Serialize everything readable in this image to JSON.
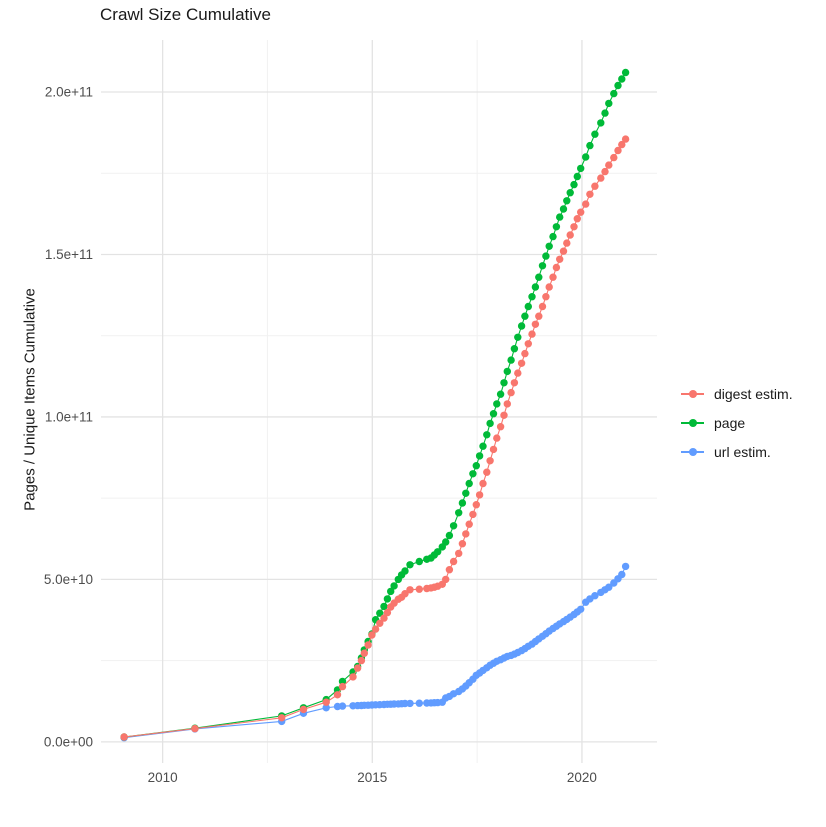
{
  "chart_data": {
    "type": "line",
    "title": "Crawl Size Cumulative",
    "xlabel": "",
    "ylabel": "Pages / Unique Items Cumulative",
    "legend_position": "right-center",
    "grid": true,
    "background": "#ffffff",
    "colors": {
      "grid_major": "#e3e3e3",
      "grid_minor": "#f1f1f1",
      "axis_tick_text": "#4d4d4d",
      "title_text": "#1a1a1a",
      "legend_text": "#1a1a1a"
    },
    "x_range": [
      2008.53,
      2021.79
    ],
    "y_range_billions": [
      -6.5,
      216
    ],
    "x_major_ticks": [
      2010,
      2015,
      2020
    ],
    "x_major_tick_labels": [
      "2010",
      "2015",
      "2020"
    ],
    "x_minor_ticks": [
      2012.5,
      2017.5
    ],
    "y_major_ticks_billions": [
      0,
      50,
      100,
      150,
      200
    ],
    "y_major_tick_labels": [
      "0.0e+00",
      "5.0e+10",
      "1.0e+11",
      "1.5e+11",
      "2.0e+11"
    ],
    "y_minor_ticks_billions": [
      25,
      75,
      125,
      175
    ],
    "units_note": "series values in billions (1e9) of pages / unique items, cumulative per crawl",
    "x": [
      2009.08,
      2010.77,
      2012.84,
      2013.36,
      2013.9,
      2014.17,
      2014.29,
      2014.54,
      2014.65,
      2014.74,
      2014.81,
      2014.9,
      2014.99,
      2015.08,
      2015.18,
      2015.28,
      2015.36,
      2015.44,
      2015.52,
      2015.62,
      2015.7,
      2015.78,
      2015.9,
      2016.12,
      2016.3,
      2016.4,
      2016.48,
      2016.56,
      2016.67,
      2016.75,
      2016.84,
      2016.94,
      2017.06,
      2017.15,
      2017.23,
      2017.31,
      2017.4,
      2017.48,
      2017.56,
      2017.64,
      2017.73,
      2017.81,
      2017.89,
      2017.97,
      2018.06,
      2018.14,
      2018.22,
      2018.31,
      2018.39,
      2018.47,
      2018.56,
      2018.64,
      2018.72,
      2018.81,
      2018.89,
      2018.97,
      2019.06,
      2019.14,
      2019.22,
      2019.31,
      2019.39,
      2019.47,
      2019.56,
      2019.64,
      2019.72,
      2019.81,
      2019.89,
      2019.97,
      2020.09,
      2020.19,
      2020.31,
      2020.45,
      2020.55,
      2020.64,
      2020.76,
      2020.86,
      2020.95,
      2021.04
    ],
    "series": [
      {
        "name": "digest estim.",
        "color": "#F8766D",
        "values_billions": [
          1.5,
          4.1,
          7.4,
          10.0,
          12.2,
          14.5,
          17.0,
          20.0,
          22.7,
          25.0,
          27.3,
          29.8,
          32.9,
          34.7,
          36.5,
          38.1,
          39.8,
          41.5,
          42.7,
          43.9,
          44.5,
          45.6,
          46.8,
          47.0,
          47.2,
          47.4,
          47.6,
          47.9,
          48.5,
          50.0,
          53.0,
          55.5,
          58.0,
          61.0,
          64.0,
          67.0,
          70.0,
          73.0,
          76.0,
          79.5,
          83.0,
          86.5,
          90.0,
          93.5,
          97.0,
          100.5,
          104.0,
          107.5,
          110.5,
          113.5,
          116.5,
          119.5,
          122.5,
          125.5,
          128.5,
          131.0,
          134.0,
          137.0,
          140.0,
          143.0,
          146.0,
          148.5,
          151.0,
          153.5,
          156.0,
          158.5,
          161.0,
          163.0,
          165.5,
          168.5,
          171.0,
          173.5,
          175.5,
          177.5,
          179.8,
          182.0,
          183.8,
          185.5
        ]
      },
      {
        "name": "page",
        "color": "#00BA38",
        "values_billions": [
          1.5,
          4.2,
          8.0,
          10.5,
          13.0,
          16.0,
          18.6,
          21.5,
          23.2,
          25.8,
          28.3,
          30.9,
          33.2,
          37.6,
          39.6,
          41.7,
          44.0,
          46.3,
          48.0,
          50.0,
          51.4,
          52.6,
          54.5,
          55.5,
          56.2,
          56.6,
          57.5,
          58.5,
          60.0,
          61.5,
          63.5,
          66.5,
          70.5,
          73.5,
          76.5,
          79.5,
          82.5,
          85.0,
          88.0,
          91.0,
          94.5,
          98.0,
          101.0,
          104.0,
          107.0,
          110.5,
          114.0,
          117.5,
          121.0,
          124.5,
          128.0,
          131.0,
          134.0,
          137.0,
          140.0,
          143.0,
          146.5,
          149.5,
          152.5,
          155.5,
          158.5,
          161.5,
          164.0,
          166.5,
          169.0,
          171.5,
          174.0,
          176.5,
          180.0,
          183.5,
          187.0,
          190.5,
          193.5,
          196.5,
          199.5,
          202.0,
          204.0,
          206.0
        ]
      },
      {
        "name": "url estim.",
        "color": "#619CFF",
        "values_billions": [
          1.3,
          4.0,
          6.3,
          8.8,
          10.5,
          10.9,
          11.0,
          11.1,
          11.15,
          11.2,
          11.25,
          11.3,
          11.35,
          11.4,
          11.45,
          11.5,
          11.55,
          11.6,
          11.65,
          11.7,
          11.75,
          11.8,
          11.85,
          11.9,
          11.95,
          12.0,
          12.05,
          12.1,
          12.2,
          13.5,
          14.0,
          14.8,
          15.5,
          16.3,
          17.2,
          18.2,
          19.3,
          20.5,
          21.2,
          22.0,
          22.8,
          23.6,
          24.2,
          24.8,
          25.3,
          25.8,
          26.3,
          26.6,
          27.0,
          27.5,
          28.1,
          28.7,
          29.4,
          30.1,
          30.9,
          31.7,
          32.5,
          33.3,
          34.1,
          34.9,
          35.6,
          36.3,
          37.0,
          37.7,
          38.4,
          39.2,
          40.0,
          40.8,
          43.0,
          44.0,
          45.0,
          46.0,
          46.8,
          47.6,
          48.9,
          50.2,
          51.5,
          54.0
        ]
      }
    ]
  }
}
